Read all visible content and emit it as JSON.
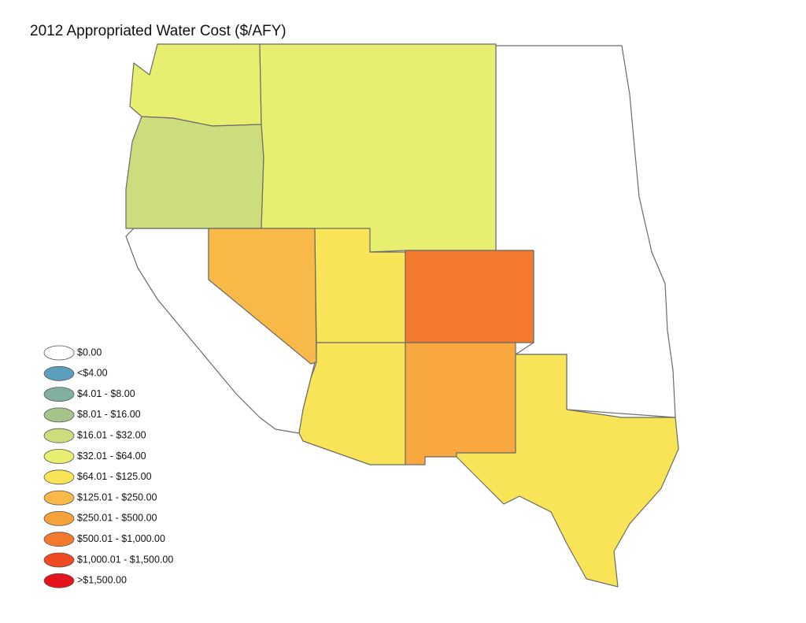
{
  "title": "2012 Appropriated Water Cost ($/AFY)",
  "legend": [
    {
      "label": "$0.00",
      "color": "#ffffff"
    },
    {
      "label": "<$4.00",
      "color": "#5b9fbd"
    },
    {
      "label": "$4.01 - $8.00",
      "color": "#7fb0a2"
    },
    {
      "label": "$8.01 - $16.00",
      "color": "#a6c48a"
    },
    {
      "label": "$16.01 - $32.00",
      "color": "#cddc7d"
    },
    {
      "label": "$32.01 - $64.00",
      "color": "#e8ef70"
    },
    {
      "label": "$64.01 - $125.00",
      "color": "#f8e456"
    },
    {
      "label": "$125.01 - $250.00",
      "color": "#f9b948"
    },
    {
      "label": "$250.01 - $500.00",
      "color": "#f7a13b"
    },
    {
      "label": "$500.01 - $1,000.00",
      "color": "#f37a2c"
    },
    {
      "label": "$1,000.01 - $1,500.00",
      "color": "#ee4b22"
    },
    {
      "label": ">$1,500.00",
      "color": "#e5141c"
    }
  ]
}
